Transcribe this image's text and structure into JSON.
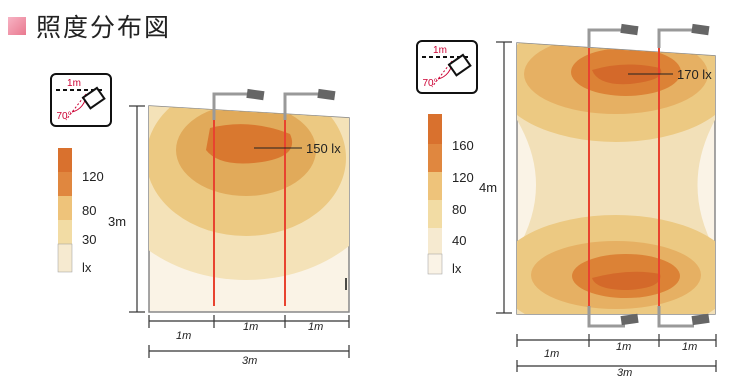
{
  "title": "照度分布図",
  "left_panel": {
    "icon": {
      "distance": "1m",
      "angle": "70°"
    },
    "legend": [
      {
        "label": "120",
        "color": "#e0873f"
      },
      {
        "label": "80",
        "color": "#eec37a"
      },
      {
        "label": "30",
        "color": "#f2dca4"
      },
      {
        "label": "lx",
        "color": "#f6ead0"
      }
    ],
    "legend_top_color": "#d9712e",
    "height_label": "3m",
    "peak_label": "150 lx",
    "segments": [
      "1m",
      "1m",
      "1m"
    ],
    "total": "3m"
  },
  "right_panel": {
    "icon": {
      "distance": "1m",
      "angle": "70°"
    },
    "legend": [
      {
        "label": "160",
        "color": "#e0873f"
      },
      {
        "label": "120",
        "color": "#eec37a"
      },
      {
        "label": "80",
        "color": "#f2dca4"
      },
      {
        "label": "40",
        "color": "#f6ead0"
      },
      {
        "label": "lx",
        "color": "#faf3e6"
      }
    ],
    "legend_top_color": "#d9712e",
    "height_label": "4m",
    "peak_label": "170 lx",
    "segments": [
      "1m",
      "1m",
      "1m"
    ],
    "total": "3m"
  }
}
